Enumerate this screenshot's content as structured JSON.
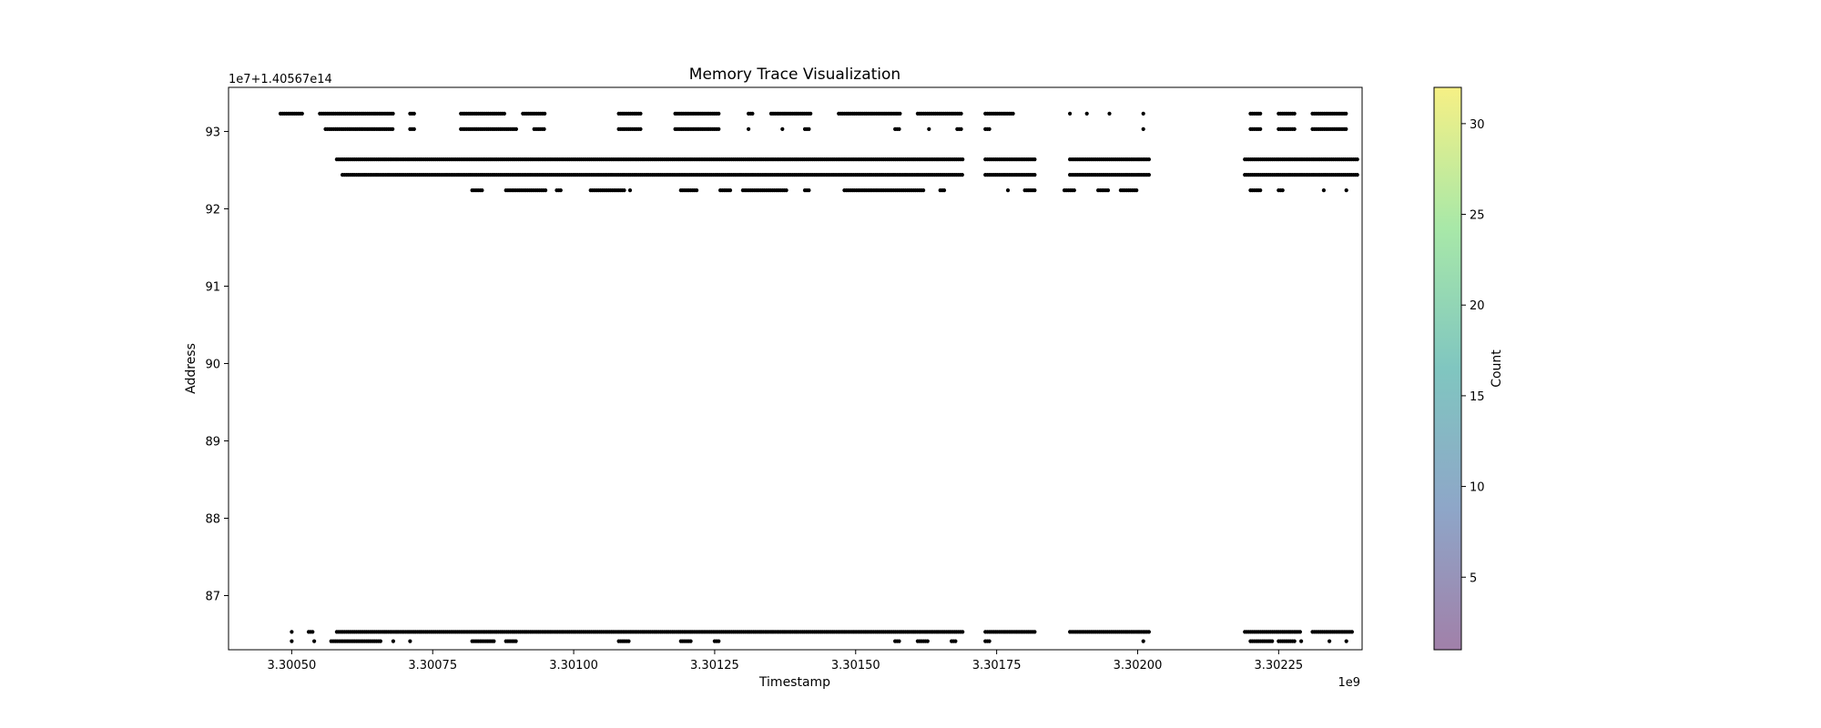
{
  "chart_data": {
    "type": "scatter",
    "title": "Memory Trace Visualization",
    "xlabel": "Timestamp",
    "ylabel": "Address",
    "x_offset_label": "1e9",
    "y_offset_label": "1e7+1.40567e14",
    "xlim": [
      3.300388,
      3.302398
    ],
    "ylim": [
      86.3,
      93.57
    ],
    "x_ticks": [
      {
        "value": 3.3005,
        "label": "3.30050"
      },
      {
        "value": 3.30075,
        "label": "3.30075"
      },
      {
        "value": 3.301,
        "label": "3.30100"
      },
      {
        "value": 3.30125,
        "label": "3.30125"
      },
      {
        "value": 3.3015,
        "label": "3.30150"
      },
      {
        "value": 3.30175,
        "label": "3.30175"
      },
      {
        "value": 3.302,
        "label": "3.30200"
      },
      {
        "value": 3.30225,
        "label": "3.30225"
      }
    ],
    "y_ticks": [
      {
        "value": 87,
        "label": "87"
      },
      {
        "value": 88,
        "label": "88"
      },
      {
        "value": 89,
        "label": "89"
      },
      {
        "value": 90,
        "label": "90"
      },
      {
        "value": 91,
        "label": "91"
      },
      {
        "value": 92,
        "label": "92"
      },
      {
        "value": 93,
        "label": "93"
      }
    ],
    "grid": false,
    "marker_color": "#000000",
    "series": [
      {
        "address": 93.23,
        "segments": [
          [
            3.30048,
            3.30052
          ],
          [
            3.30055,
            3.30068
          ],
          [
            3.30071,
            3.30072
          ],
          [
            3.3008,
            3.30088
          ],
          [
            3.30091,
            3.30095
          ],
          [
            3.30108,
            3.30112
          ],
          [
            3.30118,
            3.30126
          ],
          [
            3.30131,
            3.30132
          ],
          [
            3.30135,
            3.30142
          ],
          [
            3.30147,
            3.30158
          ],
          [
            3.30161,
            3.30169
          ],
          [
            3.30173,
            3.30178
          ],
          [
            3.30188,
            3.30188
          ],
          [
            3.30191,
            3.30191
          ],
          [
            3.30195,
            3.30195
          ],
          [
            3.30201,
            3.30201
          ],
          [
            3.3022,
            3.30222
          ],
          [
            3.30225,
            3.30228
          ],
          [
            3.30231,
            3.30237
          ]
        ]
      },
      {
        "address": 93.03,
        "segments": [
          [
            3.30056,
            3.30068
          ],
          [
            3.30071,
            3.30072
          ],
          [
            3.3008,
            3.3009
          ],
          [
            3.30093,
            3.30095
          ],
          [
            3.30108,
            3.30112
          ],
          [
            3.30118,
            3.30126
          ],
          [
            3.30131,
            3.30131
          ],
          [
            3.30137,
            3.30137
          ],
          [
            3.30141,
            3.30142
          ],
          [
            3.30157,
            3.30158
          ],
          [
            3.30163,
            3.30163
          ],
          [
            3.30168,
            3.30169
          ],
          [
            3.30173,
            3.30174
          ],
          [
            3.30201,
            3.30201
          ],
          [
            3.3022,
            3.30222
          ],
          [
            3.30225,
            3.30228
          ],
          [
            3.30231,
            3.30237
          ]
        ]
      },
      {
        "address": 92.64,
        "segments": [
          [
            3.30058,
            3.30169
          ],
          [
            3.30173,
            3.30182
          ],
          [
            3.30188,
            3.30202
          ],
          [
            3.30219,
            3.30239
          ]
        ]
      },
      {
        "address": 92.44,
        "segments": [
          [
            3.30059,
            3.30169
          ],
          [
            3.30173,
            3.30182
          ],
          [
            3.30188,
            3.30202
          ],
          [
            3.30219,
            3.30239
          ]
        ]
      },
      {
        "address": 92.24,
        "segments": [
          [
            3.30082,
            3.30084
          ],
          [
            3.30088,
            3.30095
          ],
          [
            3.30097,
            3.30098
          ],
          [
            3.30103,
            3.30109
          ],
          [
            3.3011,
            3.3011
          ],
          [
            3.30119,
            3.30122
          ],
          [
            3.30126,
            3.30128
          ],
          [
            3.3013,
            3.30138
          ],
          [
            3.30141,
            3.30142
          ],
          [
            3.30148,
            3.30162
          ],
          [
            3.30165,
            3.30166
          ],
          [
            3.30177,
            3.30177
          ],
          [
            3.3018,
            3.30182
          ],
          [
            3.30187,
            3.30189
          ],
          [
            3.30193,
            3.30195
          ],
          [
            3.30197,
            3.302
          ],
          [
            3.3022,
            3.30222
          ],
          [
            3.30225,
            3.30226
          ],
          [
            3.30233,
            3.30233
          ],
          [
            3.30237,
            3.30237
          ]
        ]
      },
      {
        "address": 86.53,
        "segments": [
          [
            3.3005,
            3.3005
          ],
          [
            3.30053,
            3.30054
          ],
          [
            3.30058,
            3.30169
          ],
          [
            3.30173,
            3.30182
          ],
          [
            3.30188,
            3.30202
          ],
          [
            3.30219,
            3.30229
          ],
          [
            3.30231,
            3.30238
          ]
        ]
      },
      {
        "address": 86.41,
        "segments": [
          [
            3.3005,
            3.3005
          ],
          [
            3.30054,
            3.30054
          ],
          [
            3.30057,
            3.30066
          ],
          [
            3.30068,
            3.30068
          ],
          [
            3.30071,
            3.30071
          ],
          [
            3.30082,
            3.30086
          ],
          [
            3.30088,
            3.3009
          ],
          [
            3.30108,
            3.3011
          ],
          [
            3.30119,
            3.30121
          ],
          [
            3.30125,
            3.30126
          ],
          [
            3.30157,
            3.30158
          ],
          [
            3.30161,
            3.30163
          ],
          [
            3.30167,
            3.30168
          ],
          [
            3.30173,
            3.30174
          ],
          [
            3.30201,
            3.30201
          ],
          [
            3.3022,
            3.30224
          ],
          [
            3.30225,
            3.30228
          ],
          [
            3.30229,
            3.30229
          ],
          [
            3.30234,
            3.30234
          ],
          [
            3.30237,
            3.30237
          ]
        ]
      }
    ],
    "colorbar": {
      "label": "Count",
      "range": [
        1,
        32
      ],
      "colors": [
        "#a180a9",
        "#8ea6c8",
        "#80c6c0",
        "#a8e8a8",
        "#f6f085"
      ],
      "ticks": [
        {
          "value": 5,
          "label": "5"
        },
        {
          "value": 10,
          "label": "10"
        },
        {
          "value": 15,
          "label": "15"
        },
        {
          "value": 20,
          "label": "20"
        },
        {
          "value": 25,
          "label": "25"
        },
        {
          "value": 30,
          "label": "30"
        }
      ]
    }
  }
}
